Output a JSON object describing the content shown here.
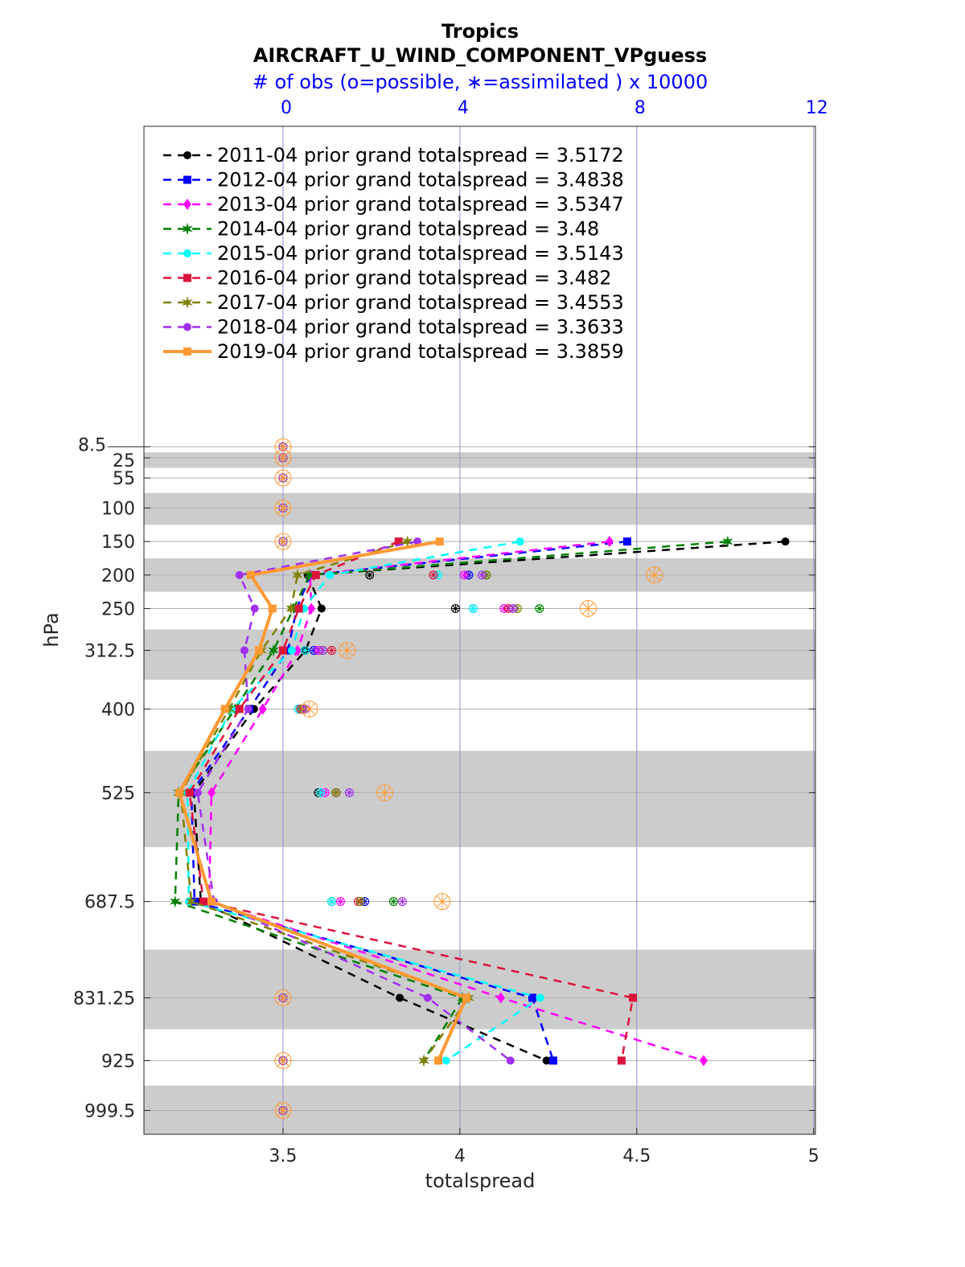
{
  "chart_data": {
    "type": "line",
    "title": "Tropics",
    "subtitle": "AIRCRAFT_U_WIND_COMPONENT_VPguess",
    "top_axis_label": "# of obs (o=possible, ∗=assimilated ) x 10000",
    "xlabel": "totalspread",
    "ylabel": "hPa",
    "xlim": [
      3.107,
      5.005
    ],
    "x_ticks": [
      "3.5",
      "4",
      "4.5",
      "5"
    ],
    "x_tick_values": [
      3.5,
      4,
      4.5,
      5
    ],
    "top_xlim": [
      -3.145,
      12.04
    ],
    "top_ticks": [
      "0",
      "4",
      "8",
      "12"
    ],
    "top_tick_values": [
      0,
      4,
      8,
      12
    ],
    "ylim": [
      -470,
      1035
    ],
    "y_reversed": true,
    "levels": [
      8.5,
      25,
      55,
      100,
      150,
      200,
      250,
      312.5,
      400,
      525,
      687.5,
      831.25,
      925,
      999.5
    ],
    "level_labels": [
      "8.5",
      "25",
      "55",
      "100",
      "150",
      "200",
      "250",
      "312.5",
      "400",
      "525",
      "687.5",
      "831.25",
      "925",
      "999.5"
    ],
    "legend_placement": "top-left",
    "colors": {
      "top_axis": "#0000ff",
      "band": "#cccccc"
    },
    "series": [
      {
        "name": "2011-04 prior grand totalspread = 3.5172",
        "color": "#000000",
        "marker": "circle",
        "dash": true,
        "values": [
          null,
          null,
          null,
          null,
          4.92,
          3.57,
          3.609,
          3.564,
          3.418,
          3.248,
          3.268,
          3.83,
          4.245,
          null
        ],
        "obs": [
          0,
          0,
          0,
          0,
          0,
          1.96,
          3.9,
          0.5,
          0.35,
          0.8,
          1.1,
          0,
          0,
          0
        ]
      },
      {
        "name": "2012-04 prior grand totalspread = 3.4838",
        "color": "#0000ff",
        "marker": "square",
        "dash": true,
        "values": [
          null,
          null,
          null,
          null,
          4.473,
          3.577,
          3.539,
          3.514,
          3.405,
          3.241,
          3.25,
          4.205,
          4.264,
          null
        ],
        "obs": [
          0,
          0,
          0,
          0,
          0,
          4.2,
          4.3,
          0.7,
          0.4,
          1.2,
          1.85,
          0,
          0,
          0
        ]
      },
      {
        "name": "2013-04 prior grand totalspread = 3.5347",
        "color": "#ff00ff",
        "marker": "diamond",
        "dash": true,
        "values": [
          null,
          null,
          null,
          null,
          4.423,
          3.577,
          3.58,
          3.541,
          3.443,
          3.298,
          3.291,
          4.116,
          4.689,
          null
        ],
        "obs": [
          0,
          0,
          0,
          0,
          0,
          4.1,
          5.0,
          0.8,
          0.45,
          0.95,
          1.3,
          0,
          0,
          0
        ]
      },
      {
        "name": "2014-04 prior grand totalspread = 3.48",
        "color": "#008000",
        "marker": "hexagram",
        "dash": true,
        "values": [
          null,
          null,
          null,
          null,
          4.757,
          3.575,
          3.53,
          3.473,
          3.364,
          3.205,
          3.195,
          4.007,
          3.898,
          null
        ],
        "obs": [
          0,
          0,
          0,
          0,
          0,
          4.6,
          5.8,
          0.9,
          0.4,
          1.2,
          2.5,
          0,
          0,
          0
        ]
      },
      {
        "name": "2015-04 prior grand totalspread = 3.5143",
        "color": "#00ffff",
        "marker": "circle",
        "dash": true,
        "values": [
          null,
          null,
          null,
          null,
          4.17,
          3.632,
          3.559,
          3.525,
          3.355,
          3.23,
          3.234,
          4.227,
          3.961,
          null
        ],
        "obs": [
          0,
          0,
          0,
          0,
          0,
          3.5,
          4.3,
          0.5,
          0.35,
          0.85,
          1.1,
          0,
          0,
          0
        ]
      },
      {
        "name": "2016-04 prior grand totalspread = 3.482",
        "color": "#dc143c",
        "marker": "square",
        "dash": true,
        "values": [
          null,
          null,
          null,
          null,
          3.827,
          3.593,
          3.545,
          3.5,
          3.377,
          3.236,
          3.275,
          4.489,
          4.457,
          null
        ],
        "obs": [
          0,
          0,
          0,
          0,
          0,
          3.4,
          5.1,
          1.1,
          0.4,
          1.2,
          1.7,
          0,
          0,
          0
        ]
      },
      {
        "name": "2017-04 prior grand totalspread = 3.4553",
        "color": "#808000",
        "marker": "asterisk",
        "dash": true,
        "values": [
          null,
          null,
          null,
          null,
          3.852,
          3.541,
          3.523,
          3.439,
          3.348,
          3.211,
          3.241,
          4.025,
          3.898,
          null
        ],
        "obs": [
          0,
          0,
          0,
          0,
          0,
          4.6,
          5.3,
          0.9,
          0.45,
          1.2,
          1.75,
          0,
          0,
          0
        ]
      },
      {
        "name": "2018-04 prior grand totalspread = 3.3633",
        "color": "#a030f0",
        "marker": "circle",
        "dash": true,
        "values": [
          null,
          null,
          null,
          null,
          3.88,
          3.377,
          3.42,
          3.391,
          3.402,
          3.259,
          3.305,
          3.909,
          4.143,
          null
        ],
        "obs": [
          0,
          0,
          0,
          0,
          0,
          4.5,
          5.2,
          0.9,
          0.5,
          1.5,
          2.7,
          0,
          0,
          0
        ]
      },
      {
        "name": "2019-04 prior grand totalspread = 3.3859",
        "color": "#ff9933",
        "marker": "square",
        "dash": false,
        "values": [
          null,
          null,
          null,
          null,
          3.943,
          3.409,
          3.47,
          3.432,
          3.336,
          3.207,
          3.298,
          4.018,
          3.939,
          null
        ],
        "obs": [
          0,
          0,
          0,
          0,
          0,
          8.4,
          6.9,
          1.45,
          0.6,
          2.3,
          3.6,
          0,
          0,
          0
        ]
      }
    ]
  }
}
